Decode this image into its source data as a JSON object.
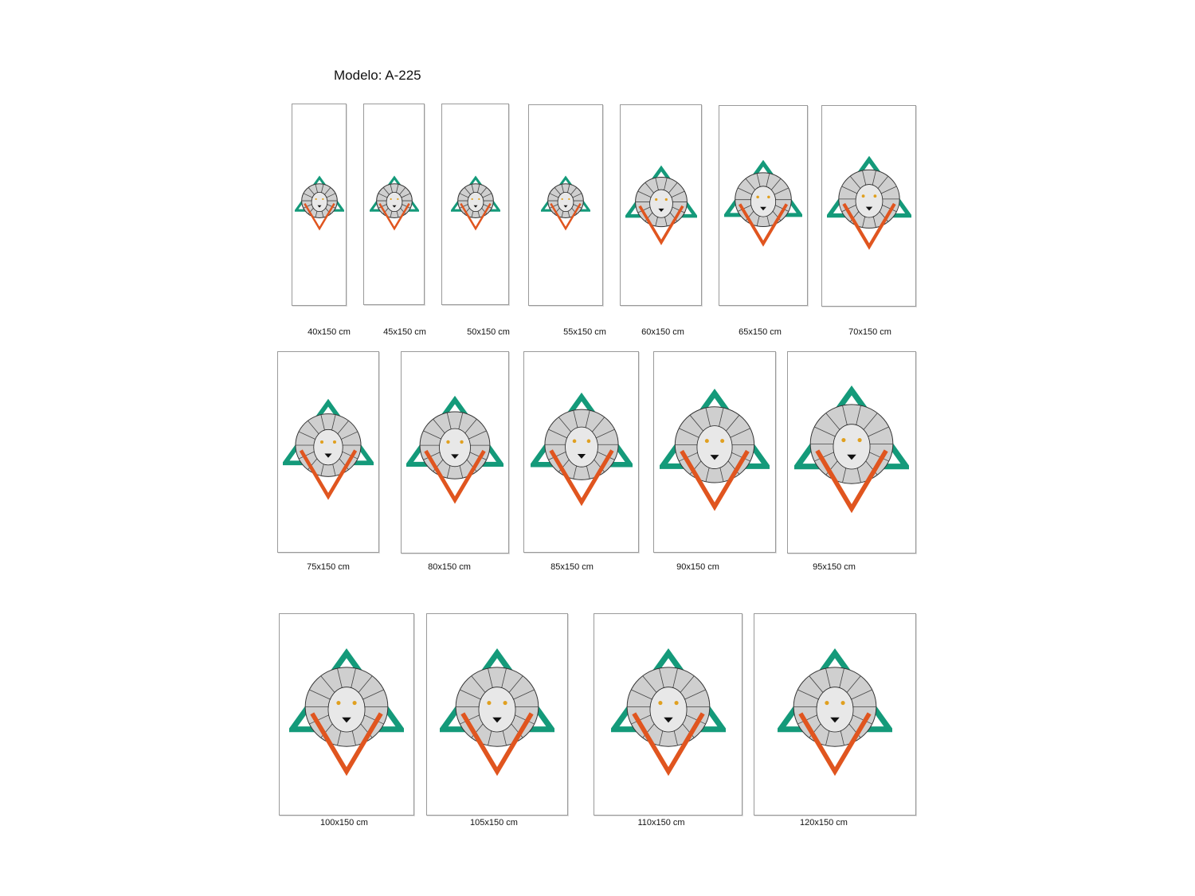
{
  "title": "Modelo: A-225",
  "colors": {
    "triangle_green": "#149a7a",
    "triangle_orange": "#e0551f",
    "frame_border": "#9a9a9a"
  },
  "artwork": "lion-head-geometric-triangles",
  "sizes": [
    {
      "label": "40x150 cm"
    },
    {
      "label": "45x150 cm"
    },
    {
      "label": "50x150 cm"
    },
    {
      "label": "55x150 cm"
    },
    {
      "label": "60x150 cm"
    },
    {
      "label": "65x150 cm"
    },
    {
      "label": "70x150 cm"
    },
    {
      "label": "75x150 cm"
    },
    {
      "label": "80x150 cm"
    },
    {
      "label": "85x150 cm"
    },
    {
      "label": "90x150 cm"
    },
    {
      "label": "95x150 cm"
    },
    {
      "label": "100x150 cm"
    },
    {
      "label": "105x150 cm"
    },
    {
      "label": "110x150 cm"
    },
    {
      "label": "120x150 cm"
    }
  ]
}
